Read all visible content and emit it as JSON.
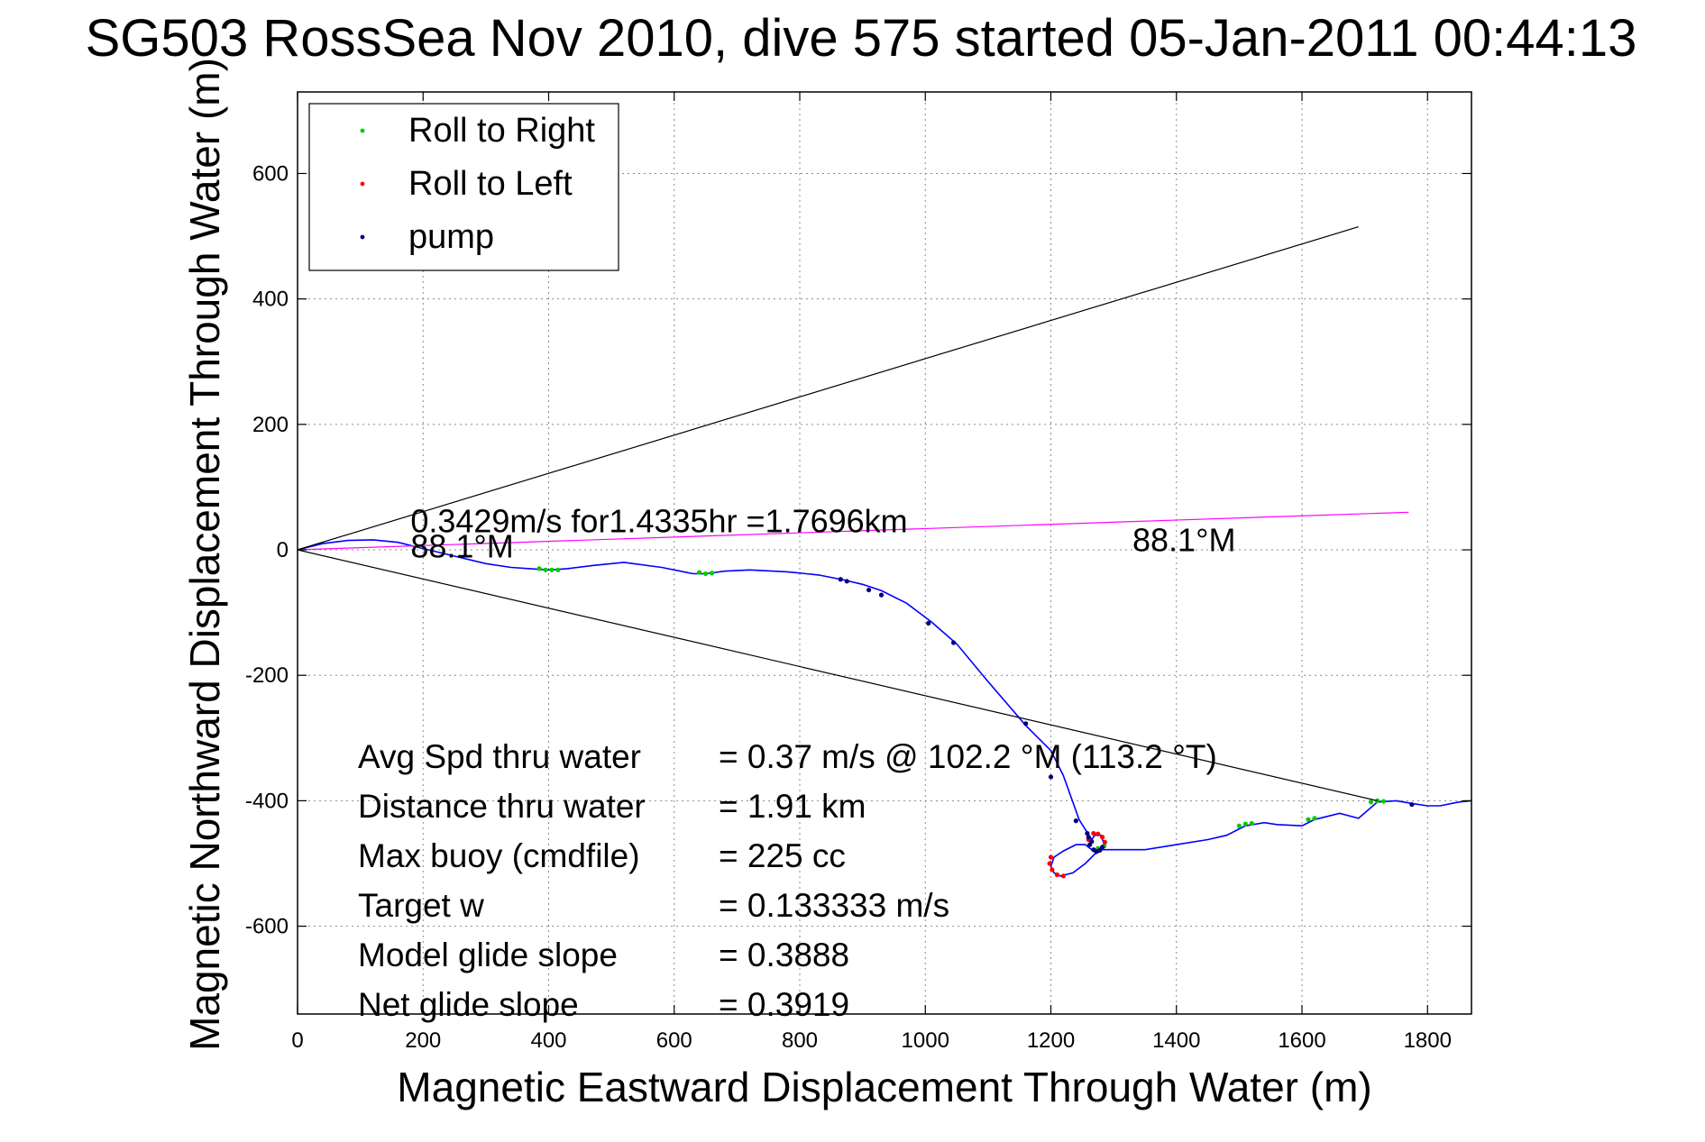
{
  "chart_data": {
    "type": "scatter",
    "title": "SG503 RossSea Nov 2010, dive 575 started 05-Jan-2011 00:44:13",
    "xlabel": "Magnetic Eastward Displacement Through Water (m)",
    "ylabel": "Magnetic Northward Displacement Through Water (m)",
    "xlim": [
      0,
      1870
    ],
    "ylim": [
      -740,
      730
    ],
    "xticks": [
      0,
      200,
      400,
      600,
      800,
      1000,
      1200,
      1400,
      1600,
      1800
    ],
    "yticks": [
      -600,
      -400,
      -200,
      0,
      200,
      400,
      600
    ],
    "xtick_labels": [
      "0",
      "200",
      "400",
      "600",
      "800",
      "1000",
      "1200",
      "1400",
      "1600",
      "1800"
    ],
    "ytick_labels": [
      "-600",
      "-400",
      "-200",
      "0",
      "200",
      "400",
      "600"
    ],
    "grid": true,
    "legend_position": "top-left",
    "legend": [
      {
        "label": "Roll to Right",
        "color": "#00cc00"
      },
      {
        "label": "Roll to Left",
        "color": "#ff0000"
      },
      {
        "label": "pump",
        "color": "#000080"
      }
    ],
    "series": [
      {
        "name": "track",
        "kind": "line",
        "color": "#0000ff",
        "x": [
          0,
          40,
          80,
          120,
          160,
          200,
          250,
          300,
          340,
          370,
          400,
          430,
          470,
          520,
          580,
          630,
          650,
          680,
          720,
          780,
          830,
          870,
          900,
          930,
          970,
          1010,
          1050,
          1100,
          1160,
          1200,
          1220,
          1245,
          1265,
          1270,
          1280,
          1285,
          1270,
          1255,
          1240,
          1220,
          1205,
          1200,
          1205,
          1215,
          1235,
          1255,
          1270,
          1282,
          1300,
          1350,
          1400,
          1450,
          1480,
          1510,
          1540,
          1560,
          1600,
          1620,
          1660,
          1690,
          1720,
          1750,
          1780,
          1800,
          1820,
          1850,
          1870
        ],
        "y": [
          0,
          10,
          15,
          16,
          12,
          2,
          -10,
          -22,
          -28,
          -30,
          -32,
          -30,
          -25,
          -20,
          -28,
          -38,
          -38,
          -34,
          -32,
          -35,
          -40,
          -48,
          -55,
          -65,
          -85,
          -115,
          -150,
          -210,
          -280,
          -320,
          -360,
          -430,
          -462,
          -455,
          -455,
          -470,
          -482,
          -470,
          -470,
          -480,
          -490,
          -505,
          -515,
          -520,
          -515,
          -500,
          -485,
          -478,
          -478,
          -478,
          -470,
          -462,
          -455,
          -440,
          -435,
          -438,
          -440,
          -430,
          -420,
          -428,
          -402,
          -400,
          -405,
          -408,
          -408,
          -402,
          -400
        ]
      },
      {
        "name": "Roll to Right",
        "kind": "points",
        "color": "#00cc00",
        "x": [
          385,
          395,
          405,
          415,
          640,
          650,
          660,
          1500,
          1510,
          1520,
          1610,
          1620,
          1710,
          1720,
          1730,
          1275,
          1285
        ],
        "y": [
          -30,
          -32,
          -32,
          -32,
          -36,
          -38,
          -37,
          -440,
          -437,
          -436,
          -430,
          -428,
          -402,
          -400,
          -401,
          -476,
          -472
        ]
      },
      {
        "name": "Roll to Left",
        "kind": "points",
        "color": "#ff0000",
        "x": [
          1200,
          1198,
          1202,
          1210,
          1220,
          1268,
          1275,
          1282,
          1286,
          1260
        ],
        "y": [
          -490,
          -500,
          -510,
          -518,
          -520,
          -452,
          -453,
          -458,
          -466,
          -462
        ]
      },
      {
        "name": "pump",
        "kind": "points",
        "color": "#000080",
        "x": [
          865,
          875,
          910,
          930,
          1005,
          1045,
          1160,
          1200,
          1240,
          1262,
          1268,
          1273,
          1278,
          1282,
          1265,
          1260,
          1258,
          1775
        ],
        "y": [
          -47,
          -50,
          -64,
          -72,
          -117,
          -148,
          -277,
          -362,
          -432,
          -470,
          -478,
          -481,
          -479,
          -474,
          -465,
          -458,
          -452,
          -406
        ]
      },
      {
        "name": "upper bound",
        "kind": "line",
        "color": "#000000",
        "x": [
          0,
          1690
        ],
        "y": [
          0,
          515
        ]
      },
      {
        "name": "lower bound",
        "kind": "line",
        "color": "#000000",
        "x": [
          0,
          1720
        ],
        "y": [
          0,
          -400
        ]
      },
      {
        "name": "net heading",
        "kind": "line",
        "color": "#ff00ff",
        "x": [
          0,
          1770
        ],
        "y": [
          0,
          60
        ]
      }
    ],
    "annotations": [
      {
        "text": "0.3429m/s for1.4335hr =1.7696km",
        "x": 180,
        "y": 28
      },
      {
        "text": "88.1°M",
        "x": 180,
        "y": -12
      },
      {
        "text": "88.1°M",
        "x": 1330,
        "y": -2
      }
    ],
    "stats": [
      {
        "label": "Avg Spd thru water",
        "value": "=  0.37 m/s @ 102.2 °M (113.2 °T)"
      },
      {
        "label": "Distance thru water",
        "value": "=  1.91 km"
      },
      {
        "label": "Max buoy (cmdfile)",
        "value": "= 225 cc"
      },
      {
        "label": "Target w",
        "value": "= 0.133333 m/s"
      },
      {
        "label": "Model glide slope",
        "value": "= 0.3888"
      },
      {
        "label": "Net glide slope",
        "value": "= 0.3919"
      }
    ]
  }
}
